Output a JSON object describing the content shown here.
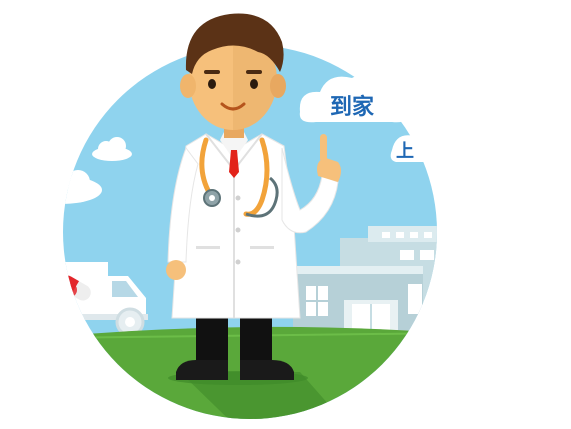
{
  "illustration": {
    "cloud_text": "到家",
    "partial_text": "上",
    "colors": {
      "sky": "#8fd3ee",
      "grass": "#5aa83a",
      "grass_dark": "#3f8a2a",
      "coat": "#ffffff",
      "skin": "#f6c07b",
      "hair": "#5b3216",
      "tie": "#e2231a",
      "stethoscope": "#f2a33a",
      "cloud_text": "#1e67b4"
    }
  }
}
